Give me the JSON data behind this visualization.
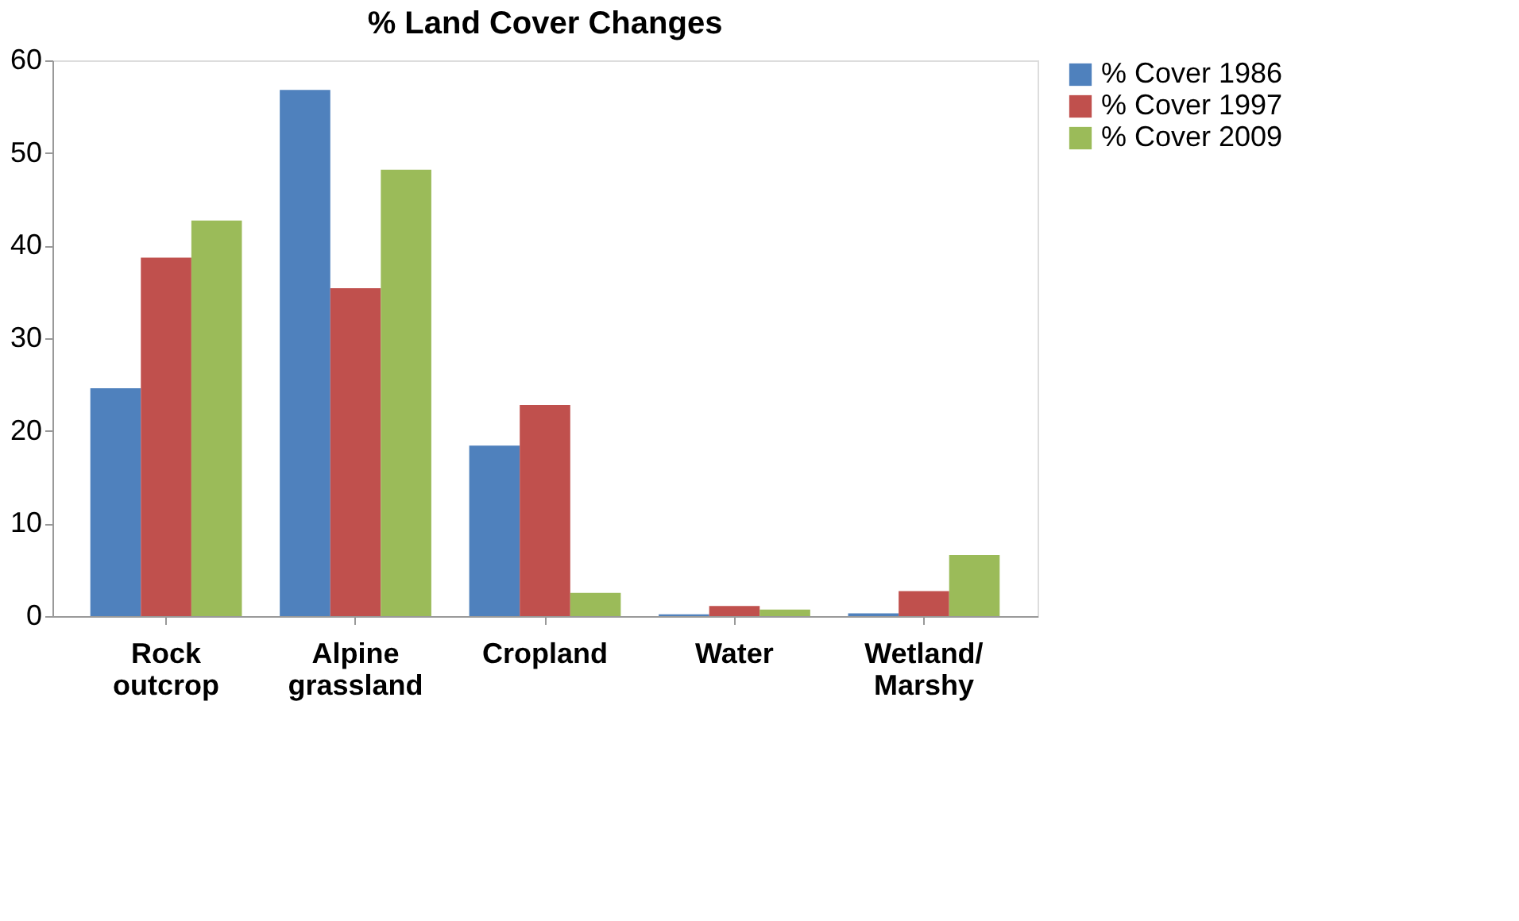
{
  "chart_data": {
    "type": "bar",
    "title": "% Land  Cover Changes",
    "categories": [
      "Rock\noutcrop",
      "Alpine\ngrassland",
      "Cropland",
      "Water",
      "Wetland/\nMarshy"
    ],
    "series": [
      {
        "name": "% Cover 1986",
        "color": "#4f81bd",
        "values": [
          24.6,
          56.8,
          18.4,
          0.2,
          0.3
        ]
      },
      {
        "name": "% Cover 1997",
        "color": "#c0504d",
        "values": [
          38.7,
          35.4,
          22.8,
          1.1,
          2.7
        ]
      },
      {
        "name": "% Cover 2009",
        "color": "#9bbb59",
        "values": [
          42.7,
          48.2,
          2.5,
          0.7,
          6.6
        ]
      }
    ],
    "ylim": [
      0,
      60
    ],
    "yticks": [
      0,
      10,
      20,
      30,
      40,
      50,
      60
    ],
    "grid": false,
    "legend": "right"
  }
}
